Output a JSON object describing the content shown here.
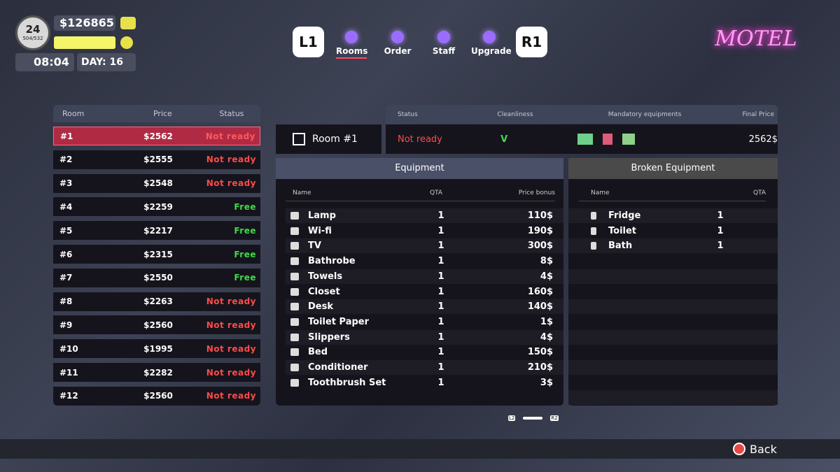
{
  "hud": {
    "level": "24",
    "xp": "504/532",
    "money": "$126865",
    "time": "08:04",
    "day": "DAY: 16"
  },
  "nav": {
    "prev": "L1",
    "next": "R1",
    "tabs": [
      "Rooms",
      "Order",
      "Staff",
      "Upgrade"
    ]
  },
  "logo": "MOTEL",
  "rooms": {
    "headers": [
      "Room",
      "Price",
      "Status"
    ],
    "rows": [
      {
        "room": "#1",
        "price": "$2562",
        "status": "Not ready",
        "color": "#ff5a5a"
      },
      {
        "room": "#2",
        "price": "$2555",
        "status": "Not ready",
        "color": "#ff4a4a"
      },
      {
        "room": "#3",
        "price": "$2548",
        "status": "Not ready",
        "color": "#ff4a4a"
      },
      {
        "room": "#4",
        "price": "$2259",
        "status": "Free",
        "color": "#3ddc4a"
      },
      {
        "room": "#5",
        "price": "$2217",
        "status": "Free",
        "color": "#3ddc4a"
      },
      {
        "room": "#6",
        "price": "$2315",
        "status": "Free",
        "color": "#3ddc4a"
      },
      {
        "room": "#7",
        "price": "$2550",
        "status": "Free",
        "color": "#3ddc4a"
      },
      {
        "room": "#8",
        "price": "$2263",
        "status": "Not ready",
        "color": "#ff4a4a"
      },
      {
        "room": "#9",
        "price": "$2560",
        "status": "Not ready",
        "color": "#ff4a4a"
      },
      {
        "room": "#10",
        "price": "$1995",
        "status": "Not ready",
        "color": "#ff4a4a"
      },
      {
        "room": "#11",
        "price": "$2282",
        "status": "Not ready",
        "color": "#ff4a4a"
      },
      {
        "room": "#12",
        "price": "$2560",
        "status": "Not ready",
        "color": "#ff4a4a"
      }
    ]
  },
  "detail": {
    "headers": [
      "Status",
      "Cleanliness",
      "Mandatory equipments",
      "Final Price"
    ],
    "room": "Room #1",
    "status": "Not ready",
    "cleanliness": "V",
    "final_price": "2562$"
  },
  "equipment": {
    "title": "Equipment",
    "headers": [
      "Name",
      "QTA",
      "Price bonus"
    ],
    "rows": [
      [
        "Lamp",
        "1",
        "110$"
      ],
      [
        "Wi-fi",
        "1",
        "190$"
      ],
      [
        "TV",
        "1",
        "300$"
      ],
      [
        "Bathrobe",
        "1",
        "8$"
      ],
      [
        "Towels",
        "1",
        "4$"
      ],
      [
        "Closet",
        "1",
        "160$"
      ],
      [
        "Desk",
        "1",
        "140$"
      ],
      [
        "Toilet Paper",
        "1",
        "1$"
      ],
      [
        "Slippers",
        "1",
        "4$"
      ],
      [
        "Bed",
        "1",
        "150$"
      ],
      [
        "Conditioner",
        "1",
        "210$"
      ],
      [
        "Toothbrush Set",
        "1",
        "3$"
      ]
    ]
  },
  "broken": {
    "title": "Broken Equipment",
    "headers": [
      "Name",
      "QTA"
    ],
    "rows": [
      [
        "Fridge",
        "1"
      ],
      [
        "Toilet",
        "1"
      ],
      [
        "Bath",
        "1"
      ]
    ]
  },
  "pager": {
    "prev": "L2",
    "next": "R2"
  },
  "back": "Back"
}
